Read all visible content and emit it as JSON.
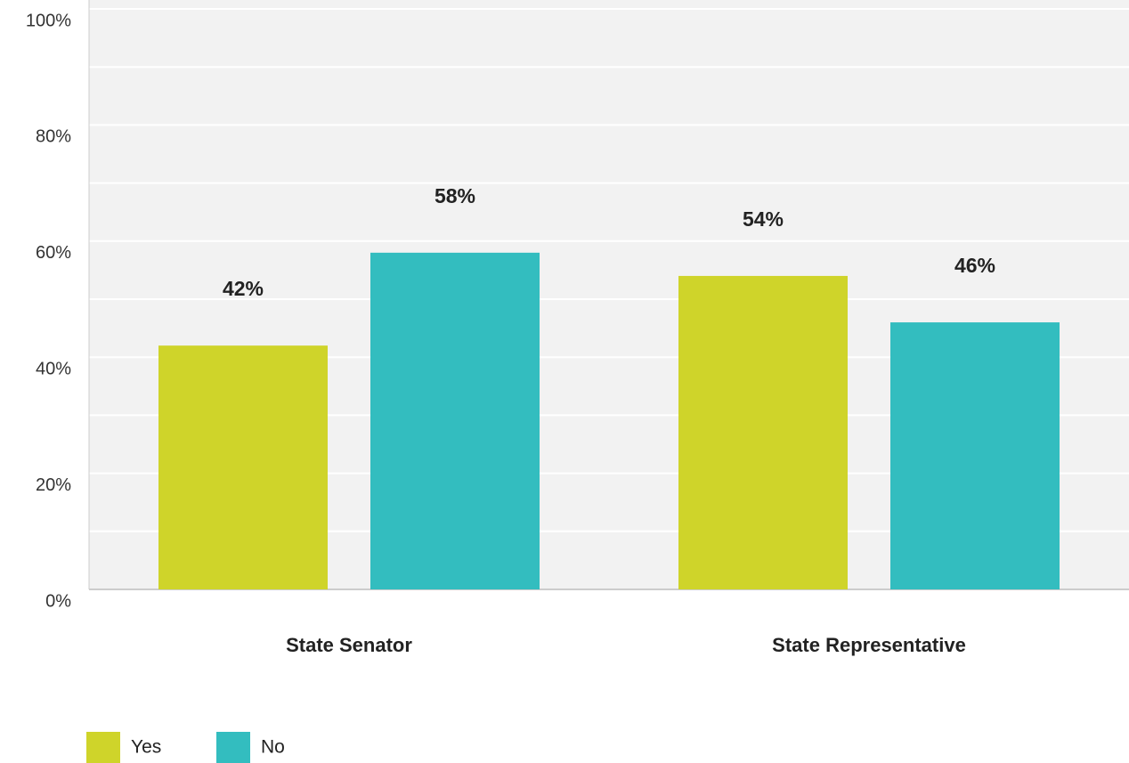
{
  "chart_data": {
    "type": "bar",
    "categories": [
      "State Senator",
      "State Representative"
    ],
    "series": [
      {
        "name": "Yes",
        "color": "#cfd42a",
        "values": [
          42,
          54
        ],
        "value_labels": [
          "42%",
          "54%"
        ]
      },
      {
        "name": "No",
        "color": "#33bdbf",
        "values": [
          58,
          46
        ],
        "value_labels": [
          "58%",
          "46%"
        ]
      }
    ],
    "ylim": [
      0,
      100
    ],
    "yticks": [
      {
        "value": 0,
        "label": "0%"
      },
      {
        "value": 20,
        "label": "20%"
      },
      {
        "value": 40,
        "label": "40%"
      },
      {
        "value": 60,
        "label": "60%"
      },
      {
        "value": 80,
        "label": "80%"
      },
      {
        "value": 100,
        "label": "100%"
      }
    ],
    "minor_yticks": [
      10,
      30,
      50,
      70,
      90
    ],
    "grid": true,
    "legend": "bottom-left"
  }
}
